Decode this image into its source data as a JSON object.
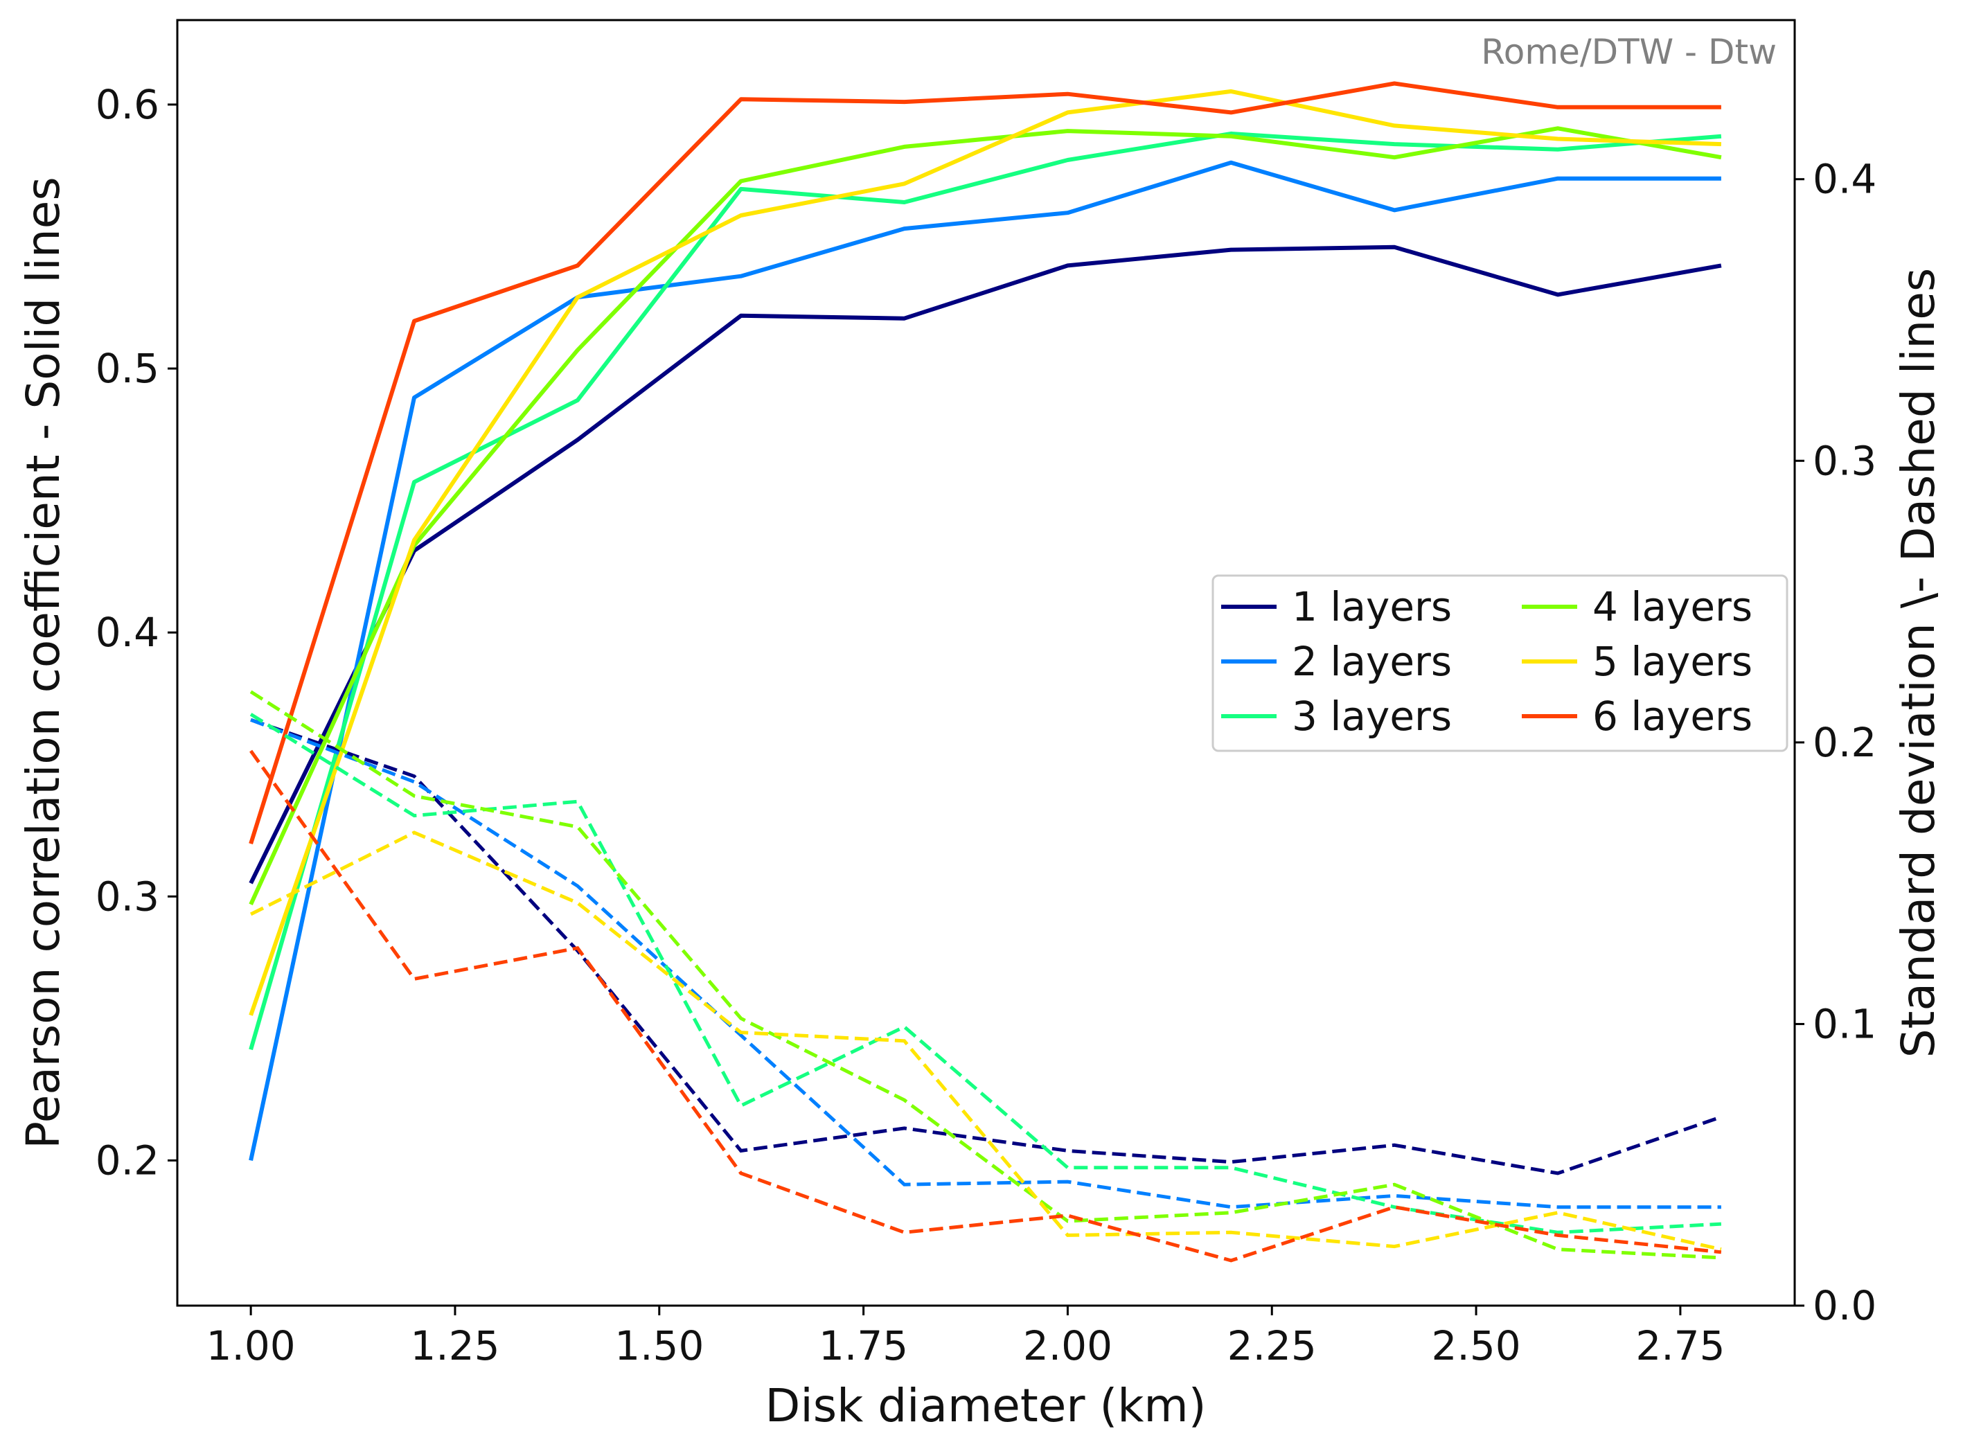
{
  "chart_data": {
    "type": "line",
    "annotation": "Rome/DTW - Dtw",
    "xlabel": "Disk diameter (km)",
    "ylabel_left": "Pearson correlation coefficient - Solid lines",
    "ylabel_right": "Standard deviation \\- Dashed lines",
    "x": [
      1.0,
      1.2,
      1.4,
      1.6,
      1.8,
      2.0,
      2.2,
      2.4,
      2.6,
      2.8
    ],
    "xlim": [
      0.91,
      2.89
    ],
    "ylim_left": [
      0.145,
      0.632
    ],
    "ylim_right": [
      0.0,
      0.4565
    ],
    "x_ticks": [
      1.0,
      1.25,
      1.5,
      1.75,
      2.0,
      2.25,
      2.5,
      2.75
    ],
    "x_tick_labels": [
      "1.00",
      "1.25",
      "1.50",
      "1.75",
      "2.00",
      "2.25",
      "2.50",
      "2.75"
    ],
    "y_left_ticks": [
      0.2,
      0.3,
      0.4,
      0.5,
      0.6
    ],
    "y_left_tick_labels": [
      "0.2",
      "0.3",
      "0.4",
      "0.5",
      "0.6"
    ],
    "y_right_ticks": [
      0.0,
      0.1,
      0.2,
      0.3,
      0.4
    ],
    "y_right_tick_labels": [
      "0.0",
      "0.1",
      "0.2",
      "0.3",
      "0.4"
    ],
    "grid": false,
    "legend_position": "center-right",
    "series": [
      {
        "name": "1 layers",
        "color": "#00007f",
        "pearson": [
          0.305,
          0.431,
          0.473,
          0.52,
          0.519,
          0.539,
          0.545,
          0.546,
          0.528,
          0.539
        ],
        "std": [
          0.208,
          0.188,
          0.126,
          0.055,
          0.063,
          0.055,
          0.051,
          0.057,
          0.047,
          0.067
        ]
      },
      {
        "name": "2 layers",
        "color": "#0080ff",
        "pearson": [
          0.2,
          0.489,
          0.527,
          0.535,
          0.553,
          0.559,
          0.578,
          0.56,
          0.572,
          0.572
        ],
        "std": [
          0.208,
          0.186,
          0.149,
          0.096,
          0.043,
          0.044,
          0.035,
          0.039,
          0.035,
          0.035
        ]
      },
      {
        "name": "3 layers",
        "color": "#15ff81",
        "pearson": [
          0.242,
          0.457,
          0.488,
          0.568,
          0.563,
          0.579,
          0.589,
          0.585,
          0.583,
          0.588
        ],
        "std": [
          0.21,
          0.174,
          0.179,
          0.071,
          0.099,
          0.049,
          0.049,
          0.035,
          0.026,
          0.029
        ]
      },
      {
        "name": "4 layers",
        "color": "#7fff00",
        "pearson": [
          0.297,
          0.433,
          0.507,
          0.571,
          0.584,
          0.59,
          0.588,
          0.58,
          0.591,
          0.58
        ],
        "std": [
          0.218,
          0.181,
          0.17,
          0.102,
          0.073,
          0.03,
          0.033,
          0.043,
          0.02,
          0.017
        ]
      },
      {
        "name": "5 layers",
        "color": "#ffe500",
        "pearson": [
          0.255,
          0.435,
          0.527,
          0.558,
          0.57,
          0.597,
          0.605,
          0.592,
          0.587,
          0.585
        ],
        "std": [
          0.139,
          0.168,
          0.143,
          0.097,
          0.094,
          0.025,
          0.026,
          0.021,
          0.033,
          0.02
        ]
      },
      {
        "name": "6 layers",
        "color": "#ff4000",
        "pearson": [
          0.32,
          0.518,
          0.539,
          0.602,
          0.601,
          0.604,
          0.597,
          0.608,
          0.599,
          0.599
        ],
        "std": [
          0.197,
          0.116,
          0.127,
          0.047,
          0.026,
          0.032,
          0.016,
          0.035,
          0.025,
          0.019
        ]
      }
    ]
  }
}
